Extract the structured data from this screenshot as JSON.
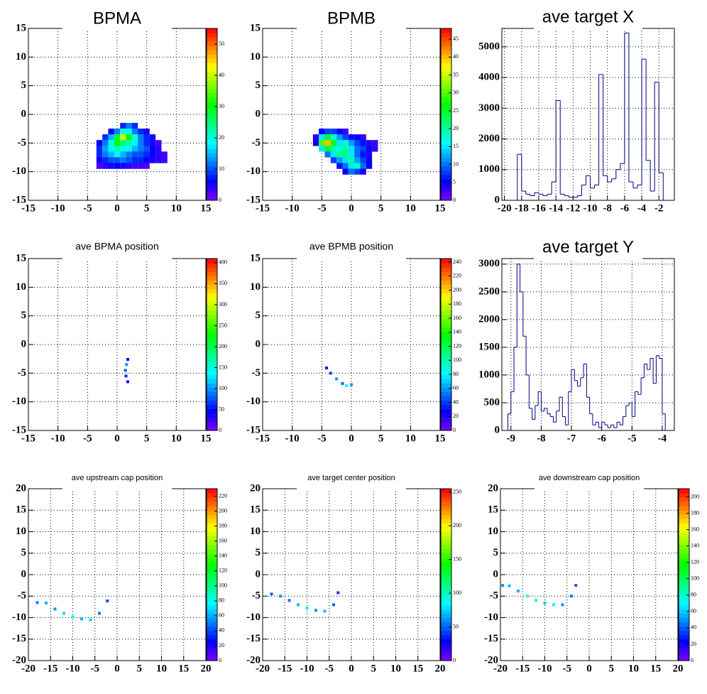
{
  "chart_data": [
    {
      "type": "heatmap",
      "title": "BPMA",
      "xlim": [
        -15,
        15
      ],
      "ylim": [
        -15,
        15
      ],
      "xticks": [
        -15,
        -10,
        -5,
        0,
        5,
        10,
        15
      ],
      "yticks": [
        -15,
        -10,
        -5,
        0,
        5,
        10,
        15
      ],
      "grid": true,
      "zlim": [
        0,
        55
      ],
      "zticks": [
        0,
        10,
        20,
        30,
        40,
        50
      ],
      "cells": [
        [
          1,
          -2,
          8
        ],
        [
          2,
          -2,
          12
        ],
        [
          3,
          -2,
          8
        ],
        [
          -1,
          -3,
          6
        ],
        [
          0,
          -3,
          12
        ],
        [
          1,
          -3,
          20
        ],
        [
          2,
          -3,
          18
        ],
        [
          3,
          -3,
          12
        ],
        [
          4,
          -3,
          8
        ],
        [
          5,
          -3,
          5
        ],
        [
          -2,
          -4,
          8
        ],
        [
          -1,
          -4,
          15
        ],
        [
          0,
          -4,
          28
        ],
        [
          1,
          -4,
          40
        ],
        [
          2,
          -4,
          30
        ],
        [
          3,
          -4,
          20
        ],
        [
          4,
          -4,
          12
        ],
        [
          5,
          -4,
          8
        ],
        [
          6,
          -4,
          5
        ],
        [
          -3,
          -5,
          6
        ],
        [
          -2,
          -5,
          12
        ],
        [
          -1,
          -5,
          20
        ],
        [
          0,
          -5,
          30
        ],
        [
          1,
          -5,
          25
        ],
        [
          2,
          -5,
          22
        ],
        [
          3,
          -5,
          18
        ],
        [
          4,
          -5,
          12
        ],
        [
          5,
          -5,
          8
        ],
        [
          6,
          -5,
          5
        ],
        [
          7,
          -5,
          3
        ],
        [
          -3,
          -6,
          8
        ],
        [
          -2,
          -6,
          14
        ],
        [
          -1,
          -6,
          18
        ],
        [
          0,
          -6,
          22
        ],
        [
          1,
          -6,
          20
        ],
        [
          2,
          -6,
          18
        ],
        [
          3,
          -6,
          15
        ],
        [
          4,
          -6,
          12
        ],
        [
          5,
          -6,
          10
        ],
        [
          6,
          -6,
          6
        ],
        [
          7,
          -6,
          4
        ],
        [
          -3,
          -7,
          8
        ],
        [
          -2,
          -7,
          12
        ],
        [
          -1,
          -7,
          15
        ],
        [
          0,
          -7,
          18
        ],
        [
          1,
          -7,
          15
        ],
        [
          2,
          -7,
          12
        ],
        [
          3,
          -7,
          10
        ],
        [
          4,
          -7,
          10
        ],
        [
          5,
          -7,
          8
        ],
        [
          6,
          -7,
          6
        ],
        [
          7,
          -7,
          4
        ],
        [
          8,
          -7,
          3
        ],
        [
          -3,
          -8,
          5
        ],
        [
          -2,
          -8,
          8
        ],
        [
          -1,
          -8,
          10
        ],
        [
          0,
          -8,
          10
        ],
        [
          1,
          -8,
          12
        ],
        [
          2,
          -8,
          10
        ],
        [
          3,
          -8,
          8
        ],
        [
          4,
          -8,
          8
        ],
        [
          5,
          -8,
          6
        ],
        [
          6,
          -8,
          5
        ],
        [
          7,
          -8,
          4
        ],
        [
          8,
          -8,
          3
        ],
        [
          -3,
          -9,
          3
        ],
        [
          -2,
          -9,
          4
        ],
        [
          -1,
          -9,
          5
        ],
        [
          0,
          -9,
          6
        ],
        [
          1,
          -9,
          5
        ],
        [
          2,
          -9,
          4
        ],
        [
          3,
          -9,
          3
        ],
        [
          4,
          -9,
          3
        ],
        [
          5,
          -9,
          2
        ]
      ]
    },
    {
      "type": "heatmap",
      "title": "BPMB",
      "xlim": [
        -15,
        15
      ],
      "ylim": [
        -15,
        15
      ],
      "xticks": [
        -15,
        -10,
        -5,
        0,
        5,
        10,
        15
      ],
      "yticks": [
        -15,
        -10,
        -5,
        0,
        5,
        10,
        15
      ],
      "grid": true,
      "zlim": [
        0,
        48
      ],
      "zticks": [
        0,
        5,
        10,
        15,
        20,
        25,
        30,
        35,
        40,
        45
      ],
      "cells": [
        [
          -5,
          -3,
          5
        ],
        [
          -4,
          -3,
          8
        ],
        [
          -3,
          -3,
          8
        ],
        [
          -2,
          -3,
          5
        ],
        [
          -1,
          -3,
          3
        ],
        [
          -6,
          -4,
          4
        ],
        [
          -5,
          -4,
          15
        ],
        [
          -4,
          -4,
          25
        ],
        [
          -3,
          -4,
          18
        ],
        [
          -2,
          -4,
          12
        ],
        [
          -1,
          -4,
          8
        ],
        [
          0,
          -4,
          6
        ],
        [
          1,
          -4,
          5
        ],
        [
          2,
          -4,
          3
        ],
        [
          -6,
          -5,
          5
        ],
        [
          -5,
          -5,
          30
        ],
        [
          -4,
          -5,
          40
        ],
        [
          -3,
          -5,
          25
        ],
        [
          -2,
          -5,
          15
        ],
        [
          -1,
          -5,
          18
        ],
        [
          0,
          -5,
          12
        ],
        [
          1,
          -5,
          8
        ],
        [
          2,
          -5,
          6
        ],
        [
          3,
          -5,
          4
        ],
        [
          4,
          -5,
          3
        ],
        [
          -5,
          -6,
          15
        ],
        [
          -4,
          -6,
          25
        ],
        [
          -3,
          -6,
          20
        ],
        [
          -2,
          -6,
          18
        ],
        [
          -1,
          -6,
          20
        ],
        [
          0,
          -6,
          15
        ],
        [
          1,
          -6,
          10
        ],
        [
          2,
          -6,
          8
        ],
        [
          3,
          -6,
          5
        ],
        [
          4,
          -6,
          3
        ],
        [
          -4,
          -7,
          10
        ],
        [
          -3,
          -7,
          15
        ],
        [
          -2,
          -7,
          20
        ],
        [
          -1,
          -7,
          22
        ],
        [
          0,
          -7,
          15
        ],
        [
          1,
          -7,
          10
        ],
        [
          2,
          -7,
          6
        ],
        [
          3,
          -7,
          4
        ],
        [
          -3,
          -8,
          8
        ],
        [
          -2,
          -8,
          12
        ],
        [
          -1,
          -8,
          15
        ],
        [
          0,
          -8,
          20
        ],
        [
          1,
          -8,
          12
        ],
        [
          2,
          -8,
          8
        ],
        [
          3,
          -8,
          5
        ],
        [
          -2,
          -9,
          6
        ],
        [
          -1,
          -9,
          10
        ],
        [
          0,
          -9,
          15
        ],
        [
          1,
          -9,
          18
        ],
        [
          2,
          -9,
          10
        ],
        [
          3,
          -9,
          5
        ],
        [
          -1,
          -10,
          5
        ],
        [
          0,
          -10,
          10
        ],
        [
          1,
          -10,
          8
        ],
        [
          2,
          -10,
          4
        ]
      ]
    },
    {
      "type": "histogram",
      "title": "ave target X",
      "xlim": [
        -20.3,
        -0.2
      ],
      "ylim": [
        0,
        5600
      ],
      "xticks": [
        -20,
        -18,
        -16,
        -14,
        -12,
        -10,
        -8,
        -6,
        -4,
        -2
      ],
      "yticks": [
        0,
        1000,
        2000,
        3000,
        4000,
        5000
      ],
      "grid": true,
      "color": "#000080",
      "bins": [
        -19,
        -18.5,
        -18,
        -17.5,
        -17,
        -16.5,
        -16,
        -15.5,
        -15,
        -14.5,
        -14,
        -13.5,
        -13,
        -12.5,
        -12,
        -11.5,
        -11,
        -10.5,
        -10,
        -9.5,
        -9,
        -8.5,
        -8,
        -7.5,
        -7,
        -6.5,
        -6,
        -5.5,
        -5,
        -4.5,
        -4,
        -3.5,
        -3,
        -2.5,
        -2,
        -1.5
      ],
      "values": [
        0,
        1500,
        300,
        200,
        150,
        250,
        200,
        150,
        200,
        600,
        3250,
        200,
        150,
        100,
        100,
        150,
        500,
        800,
        400,
        500,
        4100,
        800,
        600,
        700,
        1000,
        1200,
        5450,
        600,
        400,
        500,
        4600,
        1300,
        300,
        3850,
        900
      ]
    },
    {
      "type": "heatmap",
      "title": "ave BPMA position",
      "xlim": [
        -15,
        15
      ],
      "ylim": [
        -15,
        15
      ],
      "xticks": [
        -15,
        -10,
        -5,
        0,
        5,
        10,
        15
      ],
      "yticks": [
        -15,
        -10,
        -5,
        0,
        5,
        10,
        15
      ],
      "grid": true,
      "zlim": [
        0,
        410
      ],
      "zticks": [
        0,
        50,
        100,
        150,
        200,
        250,
        300,
        350,
        400
      ],
      "cells": [
        [
          1.8,
          -2.6,
          50
        ],
        [
          1.6,
          -3.5,
          100
        ],
        [
          1.4,
          -4.5,
          80
        ],
        [
          1.5,
          -5.5,
          60
        ],
        [
          1.8,
          -6.5,
          40
        ]
      ]
    },
    {
      "type": "heatmap",
      "title": "ave BPMB position",
      "xlim": [
        -15,
        15
      ],
      "ylim": [
        -15,
        15
      ],
      "xticks": [
        -15,
        -10,
        -5,
        0,
        5,
        10,
        15
      ],
      "yticks": [
        -15,
        -10,
        -5,
        0,
        5,
        10,
        15
      ],
      "grid": true,
      "zlim": [
        0,
        245
      ],
      "zticks": [
        0,
        20,
        40,
        60,
        80,
        100,
        120,
        140,
        160,
        180,
        200,
        220,
        240
      ],
      "cells": [
        [
          -4.2,
          -4.1,
          30
        ],
        [
          -3.5,
          -5,
          40
        ],
        [
          -2.5,
          -6,
          60
        ],
        [
          -1.5,
          -6.8,
          50
        ],
        [
          -0.8,
          -7.2,
          80
        ],
        [
          0,
          -7,
          60
        ]
      ]
    },
    {
      "type": "histogram",
      "title": "ave target Y",
      "xlim": [
        -9.3,
        -3.6
      ],
      "ylim": [
        0,
        3100
      ],
      "xticks": [
        -9,
        -8,
        -7,
        -6,
        -5,
        -4
      ],
      "yticks": [
        0,
        500,
        1000,
        1500,
        2000,
        2500,
        3000
      ],
      "grid": true,
      "color": "#000080",
      "bins": [
        -9.1,
        -9.0,
        -8.9,
        -8.8,
        -8.7,
        -8.6,
        -8.5,
        -8.4,
        -8.3,
        -8.2,
        -8.1,
        -8.0,
        -7.9,
        -7.8,
        -7.7,
        -7.6,
        -7.5,
        -7.4,
        -7.3,
        -7.2,
        -7.1,
        -7.0,
        -6.9,
        -6.8,
        -6.7,
        -6.6,
        -6.5,
        -6.4,
        -6.3,
        -6.2,
        -6.1,
        -6.0,
        -5.9,
        -5.8,
        -5.7,
        -5.6,
        -5.5,
        -5.4,
        -5.3,
        -5.2,
        -5.1,
        -5.0,
        -4.9,
        -4.8,
        -4.7,
        -4.6,
        -4.5,
        -4.4,
        -4.3,
        -4.2,
        -4.1,
        -4.0,
        -3.9
      ],
      "values": [
        300,
        700,
        1500,
        3000,
        2500,
        1700,
        1000,
        400,
        200,
        450,
        700,
        350,
        400,
        300,
        250,
        150,
        350,
        600,
        250,
        100,
        700,
        1100,
        900,
        800,
        950,
        1200,
        600,
        300,
        100,
        150,
        50,
        150,
        100,
        50,
        100,
        50,
        150,
        100,
        250,
        450,
        500,
        250,
        700,
        650,
        950,
        1200,
        1100,
        1300,
        850,
        1350,
        1300,
        300
      ]
    },
    {
      "type": "heatmap",
      "title": "ave upstream cap position",
      "xlim": [
        -20,
        20
      ],
      "ylim": [
        -20,
        20
      ],
      "xticks": [
        -20,
        -15,
        -10,
        -5,
        0,
        5,
        10,
        15,
        20
      ],
      "yticks": [
        -20,
        -15,
        -10,
        -5,
        0,
        5,
        10,
        15,
        20
      ],
      "grid": true,
      "zlim": [
        0,
        230
      ],
      "zticks": [
        0,
        20,
        40,
        60,
        80,
        100,
        120,
        140,
        160,
        180,
        200,
        220
      ],
      "cells": [
        [
          -18,
          -6.5,
          50
        ],
        [
          -16,
          -6.6,
          60
        ],
        [
          -14,
          -8,
          55
        ],
        [
          -12,
          -9,
          70
        ],
        [
          -10,
          -9.8,
          80
        ],
        [
          -8,
          -10.3,
          60
        ],
        [
          -6,
          -10.5,
          70
        ],
        [
          -4,
          -9,
          50
        ],
        [
          -2.2,
          -6.1,
          40
        ]
      ]
    },
    {
      "type": "heatmap",
      "title": "ave target center  position",
      "xlim": [
        -20,
        20
      ],
      "ylim": [
        -20,
        20
      ],
      "xticks": [
        -20,
        -15,
        -10,
        -5,
        0,
        5,
        10,
        15,
        20
      ],
      "yticks": [
        -20,
        -15,
        -10,
        -5,
        0,
        5,
        10,
        15,
        20
      ],
      "grid": true,
      "zlim": [
        0,
        255
      ],
      "zticks": [
        0,
        50,
        100,
        150,
        200,
        250
      ],
      "cells": [
        [
          -18,
          -4.5,
          50
        ],
        [
          -16,
          -5,
          60
        ],
        [
          -14,
          -6,
          55
        ],
        [
          -12,
          -7,
          70
        ],
        [
          -10,
          -7.8,
          80
        ],
        [
          -8,
          -8.3,
          60
        ],
        [
          -6,
          -8.5,
          70
        ],
        [
          -4,
          -7,
          50
        ],
        [
          -3,
          -4.2,
          40
        ]
      ]
    },
    {
      "type": "heatmap",
      "title": "ave downstream cap position",
      "xlim": [
        -20,
        20
      ],
      "ylim": [
        -20,
        20
      ],
      "xticks": [
        -20,
        -15,
        -10,
        -5,
        0,
        5,
        10,
        15,
        20
      ],
      "yticks": [
        -20,
        -15,
        -10,
        -5,
        0,
        5,
        10,
        15,
        20
      ],
      "grid": true,
      "zlim": [
        0,
        210
      ],
      "zticks": [
        0,
        20,
        40,
        60,
        80,
        100,
        120,
        140,
        160,
        180,
        200
      ],
      "cells": [
        [
          -19.5,
          -2.5,
          50
        ],
        [
          -18,
          -2.6,
          60
        ],
        [
          -16,
          -3.8,
          55
        ],
        [
          -14,
          -5,
          70
        ],
        [
          -12,
          -6,
          80
        ],
        [
          -10,
          -6.6,
          60
        ],
        [
          -8,
          -7,
          70
        ],
        [
          -6,
          -7,
          50
        ],
        [
          -4,
          -5,
          45
        ],
        [
          -3,
          -2.5,
          40
        ]
      ]
    }
  ]
}
